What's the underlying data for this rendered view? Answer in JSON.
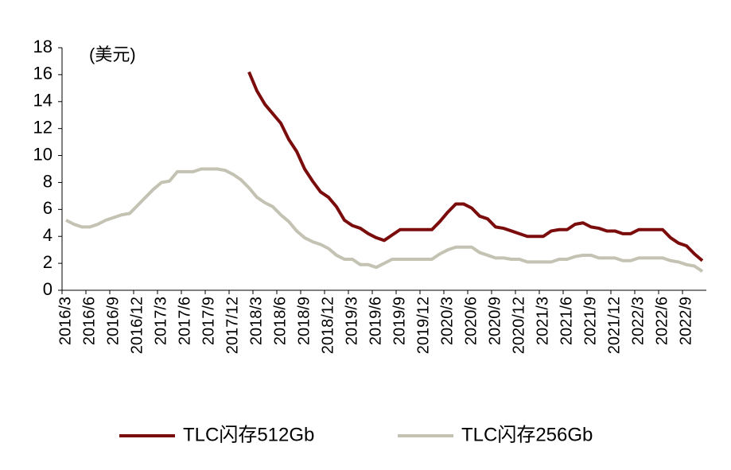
{
  "chart_data": {
    "type": "line",
    "annotation": "(美元)",
    "categories": [
      "2016/3",
      null,
      null,
      "2016/6",
      null,
      null,
      "2016/9",
      null,
      null,
      "2016/12",
      null,
      null,
      "2017/3",
      null,
      null,
      "2017/6",
      null,
      null,
      "2017/9",
      null,
      null,
      "2017/12",
      null,
      null,
      "2018/3",
      null,
      null,
      "2018/6",
      null,
      null,
      "2018/9",
      null,
      null,
      "2018/12",
      null,
      null,
      "2019/3",
      null,
      null,
      "2019/6",
      null,
      null,
      "2019/9",
      null,
      null,
      "2019/12",
      null,
      null,
      "2020/3",
      null,
      null,
      "2020/6",
      null,
      null,
      "2020/9",
      null,
      null,
      "2020/12",
      null,
      null,
      "2021/3",
      null,
      null,
      "2021/6",
      null,
      null,
      "2021/9",
      null,
      null,
      "2021/12",
      null,
      null,
      "2022/3",
      null,
      null,
      "2022/6",
      null,
      null,
      "2022/9",
      null,
      null
    ],
    "series": [
      {
        "name": "TLC闪存512Gb",
        "color": "#7b0c0c",
        "values": [
          null,
          null,
          null,
          null,
          null,
          null,
          null,
          null,
          null,
          null,
          null,
          null,
          null,
          null,
          null,
          null,
          null,
          null,
          null,
          null,
          null,
          null,
          null,
          16.2,
          14.8,
          13.8,
          13.1,
          12.4,
          11.2,
          10.3,
          9.0,
          8.1,
          7.3,
          6.9,
          6.2,
          5.2,
          4.8,
          4.6,
          4.2,
          3.9,
          3.7,
          4.1,
          4.5,
          4.5,
          4.5,
          4.5,
          4.5,
          5.1,
          5.8,
          6.4,
          6.4,
          6.1,
          5.5,
          5.3,
          4.7,
          4.6,
          4.4,
          4.2,
          4.0,
          4.0,
          4.0,
          4.4,
          4.5,
          4.5,
          4.9,
          5.0,
          4.7,
          4.6,
          4.4,
          4.4,
          4.2,
          4.2,
          4.5,
          4.5,
          4.5,
          4.5,
          3.9,
          3.5,
          3.3,
          2.7,
          2.2
        ]
      },
      {
        "name": "TLC闪存256Gb",
        "color": "#c3c2b3",
        "values": [
          5.2,
          4.9,
          4.7,
          4.7,
          4.9,
          5.2,
          5.4,
          5.6,
          5.7,
          6.3,
          6.9,
          7.5,
          8.0,
          8.1,
          8.8,
          8.8,
          8.8,
          9.0,
          9.0,
          9.0,
          8.9,
          8.6,
          8.2,
          7.6,
          6.9,
          6.5,
          6.2,
          5.6,
          5.1,
          4.4,
          3.9,
          3.6,
          3.4,
          3.1,
          2.6,
          2.3,
          2.3,
          1.9,
          1.9,
          1.7,
          2.0,
          2.3,
          2.3,
          2.3,
          2.3,
          2.3,
          2.3,
          2.7,
          3.0,
          3.2,
          3.2,
          3.2,
          2.8,
          2.6,
          2.4,
          2.4,
          2.3,
          2.3,
          2.1,
          2.1,
          2.1,
          2.1,
          2.3,
          2.3,
          2.5,
          2.6,
          2.6,
          2.4,
          2.4,
          2.4,
          2.2,
          2.2,
          2.4,
          2.4,
          2.4,
          2.4,
          2.2,
          2.1,
          1.9,
          1.8,
          1.4
        ]
      }
    ],
    "ylim": [
      0,
      18
    ],
    "yticks": [
      0,
      2,
      4,
      6,
      8,
      10,
      12,
      14,
      16,
      18
    ],
    "grid": false,
    "legend": "bottom"
  }
}
